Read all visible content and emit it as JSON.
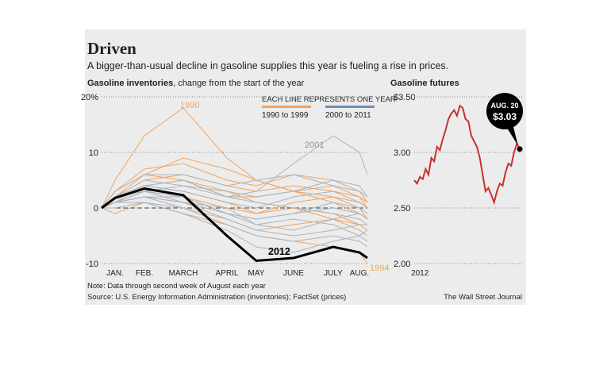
{
  "header": {
    "title": "Driven",
    "subtitle": "A bigger-than-usual decline in gasoline supplies this year is fueling a rise in prices."
  },
  "chart_data": [
    {
      "type": "line",
      "title": "Gasoline inventories",
      "subtitle": ", change from the start of the year",
      "legend_title": "EACH LINE REPRESENTS ONE YEAR",
      "categories": [
        null,
        "JAN.",
        "FEB.",
        "MARCH",
        "APRIL",
        "MAY",
        "JUNE",
        "JULY",
        "AUG.",
        null
      ],
      "ylim": [
        -10,
        20
      ],
      "yticks": [
        {
          "value": 20,
          "label": "20%"
        },
        10,
        0,
        -10
      ],
      "grid": true,
      "legend": [
        {
          "name": "1990 to 1999",
          "color": "#f2a35e"
        },
        {
          "name": "2000 to 2011",
          "color": "#6b8fb0"
        }
      ],
      "series": [
        {
          "name": "1990",
          "color": "#f2a35e",
          "values": [
            0,
            5,
            13,
            18,
            9,
            5,
            3,
            1,
            -1,
            -2
          ]
        },
        {
          "color": "#f2a35e",
          "values": [
            0,
            2,
            6,
            9,
            7,
            5,
            3,
            2,
            1,
            0
          ]
        },
        {
          "color": "#f2a35e",
          "values": [
            0,
            1,
            4,
            5,
            3,
            1,
            0,
            -1,
            -3,
            -4
          ]
        },
        {
          "color": "#f2a35e",
          "values": [
            0,
            3,
            7,
            8,
            5,
            4,
            6,
            5,
            3,
            1
          ]
        },
        {
          "name": "1994",
          "color": "#f2a35e",
          "values": [
            0,
            -1,
            1,
            -1,
            -3,
            -5,
            -6,
            -7,
            -8,
            -10
          ]
        },
        {
          "color": "#f2a35e",
          "values": [
            0,
            2,
            4,
            3,
            1,
            -1,
            1,
            2,
            0,
            -2
          ]
        },
        {
          "color": "#f2a35e",
          "values": [
            0,
            1,
            2,
            1,
            -2,
            -4,
            -3,
            -2,
            -4,
            -5
          ]
        },
        {
          "color": "#f2a35e",
          "values": [
            0,
            2,
            5,
            6,
            4,
            3,
            4,
            3,
            2,
            1
          ]
        },
        {
          "color": "#f2a35e",
          "values": [
            0,
            1,
            3,
            2,
            0,
            -1,
            0,
            -2,
            -3,
            -3
          ]
        },
        {
          "color": "#f2a35e",
          "values": [
            0,
            3,
            6,
            5,
            2,
            2,
            3,
            4,
            2,
            0
          ]
        },
        {
          "color": "#a9b4bf",
          "values": [
            0,
            1,
            2,
            0,
            -3,
            -5,
            -6,
            -5,
            -6,
            -7
          ]
        },
        {
          "name": "2001",
          "color": "#a9b4bf",
          "values": [
            0,
            1,
            3,
            4,
            2,
            3,
            8,
            13,
            10,
            6
          ]
        },
        {
          "color": "#a9b4bf",
          "values": [
            0,
            2,
            3,
            1,
            -1,
            -2,
            -1,
            0,
            -1,
            -2
          ]
        },
        {
          "color": "#a9b4bf",
          "values": [
            0,
            0,
            1,
            -1,
            -4,
            -7,
            -8,
            -6,
            -5,
            -4
          ]
        },
        {
          "color": "#a9b4bf",
          "values": [
            0,
            2,
            4,
            3,
            1,
            0,
            2,
            3,
            1,
            0
          ]
        },
        {
          "color": "#a9b4bf",
          "values": [
            0,
            1,
            2,
            2,
            -1,
            -3,
            -2,
            -3,
            -5,
            -6
          ]
        },
        {
          "color": "#a9b4bf",
          "values": [
            0,
            2,
            5,
            4,
            3,
            2,
            3,
            5,
            4,
            2
          ]
        },
        {
          "color": "#a9b4bf",
          "values": [
            0,
            1,
            1,
            0,
            -2,
            -4,
            -5,
            -4,
            -3,
            -3
          ]
        },
        {
          "color": "#a9b4bf",
          "values": [
            0,
            3,
            6,
            6,
            4,
            5,
            6,
            4,
            3,
            2
          ]
        },
        {
          "color": "#a9b4bf",
          "values": [
            0,
            1,
            3,
            2,
            -1,
            -2,
            -1,
            1,
            0,
            -1
          ]
        },
        {
          "color": "#a9b4bf",
          "values": [
            0,
            2,
            4,
            5,
            2,
            1,
            0,
            -1,
            -2,
            -3
          ]
        },
        {
          "color": "#a9b4bf",
          "values": [
            0,
            1,
            2,
            1,
            0,
            -3,
            -4,
            -2,
            -1,
            -2
          ]
        },
        {
          "name": "2012",
          "color": "#000000",
          "values": [
            0,
            1.8,
            3.5,
            2.3,
            -5,
            -9.5,
            -9,
            -7,
            -8,
            -9
          ]
        }
      ]
    },
    {
      "type": "line",
      "title": "Gasoline futures",
      "categories": [
        null,
        null,
        "2012",
        null,
        null,
        null,
        null,
        null,
        null,
        null,
        null,
        null,
        null,
        null,
        null,
        null,
        null,
        null,
        null,
        null,
        null,
        null,
        null,
        null,
        null,
        null,
        null,
        null,
        null,
        null,
        null,
        null,
        null,
        null,
        null,
        null,
        null,
        null
      ],
      "ylim": [
        2,
        3.5
      ],
      "yticks": [
        {
          "value": 3.5,
          "label": "$3.50"
        },
        {
          "value": 3,
          "label": "3.00"
        },
        {
          "value": 2.5,
          "label": "2.50"
        },
        {
          "value": 2,
          "label": "2.00"
        }
      ],
      "grid": true,
      "annotation": {
        "date": "AUG. 20",
        "price": "$3.03"
      },
      "series": [
        {
          "color": "#c8322c",
          "values": [
            2.75,
            2.72,
            2.78,
            2.76,
            2.85,
            2.8,
            2.95,
            2.92,
            3.05,
            3.02,
            3.12,
            3.2,
            3.3,
            3.35,
            3.38,
            3.33,
            3.42,
            3.4,
            3.3,
            3.28,
            3.15,
            3.1,
            3.05,
            2.95,
            2.8,
            2.65,
            2.68,
            2.62,
            2.55,
            2.65,
            2.72,
            2.7,
            2.82,
            2.9,
            2.88,
            3.0,
            3.08,
            3.03
          ]
        }
      ]
    }
  ],
  "footer": {
    "note": "Note: Data through second week of August each year",
    "source": "Source: U.S. Energy Information Administration (inventories); FactSet (prices)",
    "credit": "The Wall Street Journal"
  }
}
